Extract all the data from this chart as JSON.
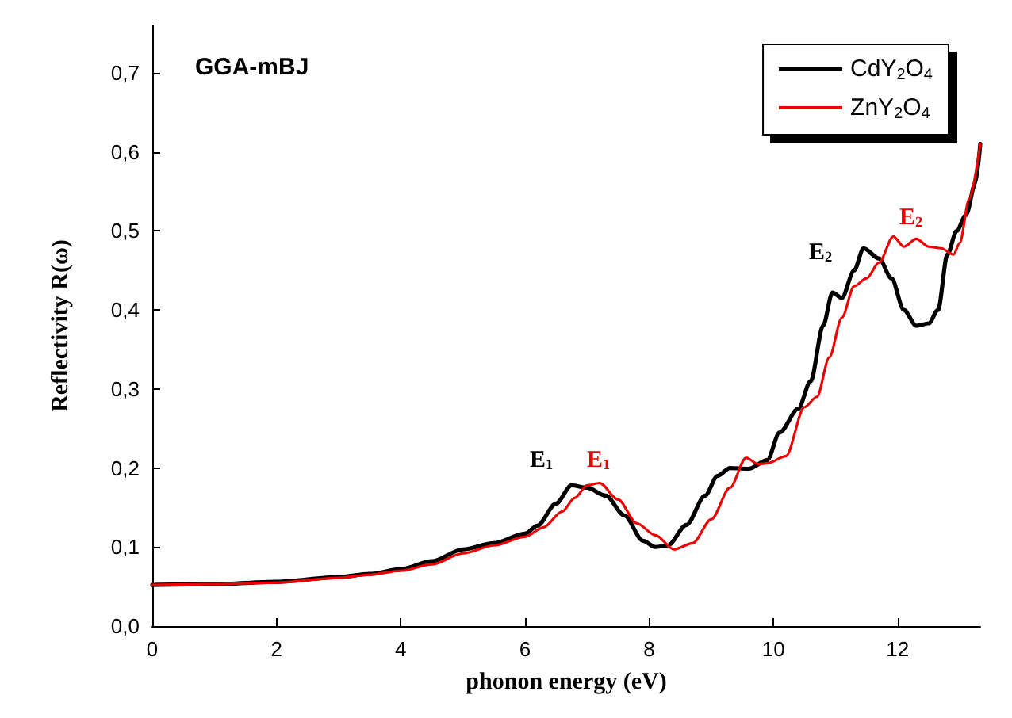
{
  "chart_data": {
    "type": "line",
    "title": "GGA-mBJ",
    "xlabel": "phonon energy (eV)",
    "ylabel": "Reflectivity R(ω)",
    "xlim": [
      0,
      13.33
    ],
    "ylim": [
      0,
      0.76
    ],
    "xticks": [
      0,
      2,
      4,
      6,
      8,
      10,
      12
    ],
    "yticks": [
      {
        "value": 0,
        "label": "0,0"
      },
      {
        "value": 0.1,
        "label": "0,1"
      },
      {
        "value": 0.2,
        "label": "0,2"
      },
      {
        "value": 0.3,
        "label": "0,3"
      },
      {
        "value": 0.4,
        "label": "0,4"
      },
      {
        "value": 0.5,
        "label": "0,5"
      },
      {
        "value": 0.6,
        "label": "0,6"
      },
      {
        "value": 0.7,
        "label": "0,7"
      }
    ],
    "grid": false,
    "legend": "top right",
    "marker": "none",
    "line_style": "solid",
    "series": [
      {
        "name": "CdY$_{2}$O$_{4}$",
        "color": "#000000",
        "x": [
          0,
          1,
          2,
          3,
          3.5,
          4,
          4.5,
          5,
          5.5,
          6,
          6.2,
          6.5,
          6.75,
          7,
          7.3,
          7.6,
          7.9,
          8.1,
          8.3,
          8.6,
          8.9,
          9.1,
          9.3,
          9.6,
          9.9,
          10.1,
          10.4,
          10.6,
          10.8,
          10.95,
          11.1,
          11.3,
          11.45,
          11.7,
          11.9,
          12.1,
          12.3,
          12.5,
          12.65,
          12.8,
          12.95,
          13.1,
          13.25,
          13.33
        ],
        "values": [
          0.052,
          0.053,
          0.056,
          0.062,
          0.066,
          0.072,
          0.082,
          0.097,
          0.105,
          0.117,
          0.127,
          0.155,
          0.178,
          0.175,
          0.165,
          0.14,
          0.108,
          0.1,
          0.102,
          0.128,
          0.165,
          0.19,
          0.2,
          0.199,
          0.21,
          0.245,
          0.275,
          0.31,
          0.38,
          0.422,
          0.415,
          0.45,
          0.478,
          0.465,
          0.44,
          0.4,
          0.38,
          0.383,
          0.4,
          0.47,
          0.5,
          0.52,
          0.56,
          0.61
        ]
      },
      {
        "name": "ZnY$_{2}$O$_{4}$",
        "color": "#ee0000",
        "x": [
          0,
          1,
          2,
          3,
          3.5,
          4,
          4.5,
          5,
          5.5,
          6,
          6.3,
          6.6,
          6.8,
          7,
          7.2,
          7.5,
          7.8,
          8.1,
          8.4,
          8.7,
          9,
          9.3,
          9.56,
          9.75,
          9.9,
          10.2,
          10.5,
          10.7,
          10.9,
          11.1,
          11.3,
          11.5,
          11.7,
          11.93,
          12.1,
          12.3,
          12.5,
          12.7,
          12.9,
          13,
          13.15,
          13.33
        ],
        "values": [
          0.052,
          0.053,
          0.055,
          0.061,
          0.065,
          0.07,
          0.078,
          0.092,
          0.102,
          0.113,
          0.125,
          0.145,
          0.162,
          0.178,
          0.181,
          0.16,
          0.13,
          0.115,
          0.097,
          0.105,
          0.135,
          0.175,
          0.213,
          0.205,
          0.206,
          0.215,
          0.277,
          0.29,
          0.34,
          0.39,
          0.43,
          0.44,
          0.46,
          0.493,
          0.48,
          0.49,
          0.48,
          0.478,
          0.47,
          0.485,
          0.54,
          0.61
        ]
      }
    ],
    "annotations": [
      "E$_{1}$",
      "E$_{1}$",
      "E$_{2}$",
      "E$_{2}$"
    ]
  }
}
